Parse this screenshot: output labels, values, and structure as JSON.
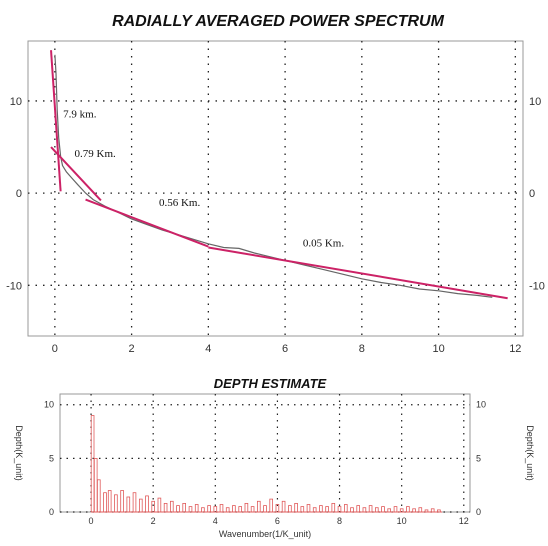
{
  "chart_data": [
    {
      "type": "line",
      "title": "RADIALLY AVERAGED POWER SPECTRUM",
      "xlabel": "",
      "ylabel": "",
      "xlim": [
        -0.7,
        12.2
      ],
      "ylim": [
        -15.5,
        16.5
      ],
      "xticks": [
        0,
        2,
        4,
        6,
        8,
        10,
        12
      ],
      "yticks": [
        -10,
        0,
        10
      ],
      "grid": true,
      "series": [
        {
          "values_x": [
            0.0,
            0.03,
            0.06,
            0.1,
            0.15,
            0.2,
            0.3,
            0.45,
            0.6,
            0.8,
            1.0,
            1.3,
            1.6,
            2.0,
            2.4,
            2.8,
            3.2,
            3.6,
            4.0,
            4.4,
            4.8,
            5.2,
            5.6,
            6.0,
            6.5,
            7.0,
            7.5,
            8.0,
            8.5,
            9.0,
            9.5,
            10.0,
            10.5,
            11.0,
            11.4
          ],
          "values_y": [
            15.0,
            13.0,
            9.0,
            6.0,
            4.0,
            3.0,
            2.3,
            1.6,
            0.9,
            0.0,
            -0.7,
            -1.4,
            -2.0,
            -2.8,
            -3.4,
            -4.0,
            -4.5,
            -5.0,
            -5.5,
            -5.9,
            -6.0,
            -6.5,
            -6.9,
            -7.3,
            -7.8,
            -8.3,
            -8.8,
            -9.3,
            -9.7,
            -10.0,
            -10.4,
            -10.6,
            -10.9,
            -11.1,
            -11.3
          ]
        }
      ],
      "fit_lines": [
        {
          "x": [
            -0.1,
            0.15
          ],
          "y": [
            15.5,
            0.2
          ]
        },
        {
          "x": [
            -0.1,
            1.2
          ],
          "y": [
            5.0,
            -0.8
          ]
        },
        {
          "x": [
            0.8,
            4.0
          ],
          "y": [
            -0.7,
            -5.8
          ]
        },
        {
          "x": [
            4.0,
            11.8
          ],
          "y": [
            -5.9,
            -11.4
          ]
        }
      ],
      "annotations": [
        {
          "text": "7.9 km.",
          "x": 0.65,
          "y": 8.2
        },
        {
          "text": "0.79 Km.",
          "x": 1.05,
          "y": 3.9
        },
        {
          "text": "0.56 Km.",
          "x": 3.25,
          "y": -1.4
        },
        {
          "text": "0.05 Km.",
          "x": 7.0,
          "y": -5.8
        }
      ]
    },
    {
      "type": "bar",
      "title": "DEPTH ESTIMATE",
      "xlabel": "Wavenumber(1/K_unit)",
      "ylabel": "Depth(K_unit)",
      "ylabel_right": "Depth(K_unit)",
      "xlim": [
        -1.0,
        12.2
      ],
      "ylim": [
        0,
        11
      ],
      "xticks": [
        0,
        2,
        4,
        6,
        8,
        10,
        12
      ],
      "yticks": [
        0,
        5,
        10
      ],
      "grid": true,
      "bins": [
        {
          "x": 0.05,
          "v": 9.0
        },
        {
          "x": 0.15,
          "v": 5.0
        },
        {
          "x": 0.25,
          "v": 3.0
        },
        {
          "x": 0.45,
          "v": 1.8
        },
        {
          "x": 0.6,
          "v": 2.0
        },
        {
          "x": 0.8,
          "v": 1.6
        },
        {
          "x": 1.0,
          "v": 2.0
        },
        {
          "x": 1.2,
          "v": 1.4
        },
        {
          "x": 1.4,
          "v": 1.8
        },
        {
          "x": 1.6,
          "v": 1.2
        },
        {
          "x": 1.8,
          "v": 1.5
        },
        {
          "x": 2.0,
          "v": 1.0
        },
        {
          "x": 2.2,
          "v": 1.3
        },
        {
          "x": 2.4,
          "v": 0.8
        },
        {
          "x": 2.6,
          "v": 1.0
        },
        {
          "x": 2.8,
          "v": 0.6
        },
        {
          "x": 3.0,
          "v": 0.8
        },
        {
          "x": 3.2,
          "v": 0.5
        },
        {
          "x": 3.4,
          "v": 0.7
        },
        {
          "x": 3.6,
          "v": 0.4
        },
        {
          "x": 3.8,
          "v": 0.6
        },
        {
          "x": 4.0,
          "v": 0.5
        },
        {
          "x": 4.2,
          "v": 0.7
        },
        {
          "x": 4.4,
          "v": 0.4
        },
        {
          "x": 4.6,
          "v": 0.6
        },
        {
          "x": 4.8,
          "v": 0.5
        },
        {
          "x": 5.0,
          "v": 0.8
        },
        {
          "x": 5.2,
          "v": 0.5
        },
        {
          "x": 5.4,
          "v": 1.0
        },
        {
          "x": 5.6,
          "v": 0.6
        },
        {
          "x": 5.8,
          "v": 1.2
        },
        {
          "x": 6.0,
          "v": 0.7
        },
        {
          "x": 6.2,
          "v": 1.0
        },
        {
          "x": 6.4,
          "v": 0.6
        },
        {
          "x": 6.6,
          "v": 0.8
        },
        {
          "x": 6.8,
          "v": 0.5
        },
        {
          "x": 7.0,
          "v": 0.7
        },
        {
          "x": 7.2,
          "v": 0.4
        },
        {
          "x": 7.4,
          "v": 0.6
        },
        {
          "x": 7.6,
          "v": 0.5
        },
        {
          "x": 7.8,
          "v": 0.8
        },
        {
          "x": 8.0,
          "v": 0.5
        },
        {
          "x": 8.2,
          "v": 0.7
        },
        {
          "x": 8.4,
          "v": 0.4
        },
        {
          "x": 8.6,
          "v": 0.6
        },
        {
          "x": 8.8,
          "v": 0.4
        },
        {
          "x": 9.0,
          "v": 0.6
        },
        {
          "x": 9.2,
          "v": 0.4
        },
        {
          "x": 9.4,
          "v": 0.5
        },
        {
          "x": 9.6,
          "v": 0.3
        },
        {
          "x": 9.8,
          "v": 0.5
        },
        {
          "x": 10.0,
          "v": 0.3
        },
        {
          "x": 10.2,
          "v": 0.5
        },
        {
          "x": 10.4,
          "v": 0.3
        },
        {
          "x": 10.6,
          "v": 0.4
        },
        {
          "x": 10.8,
          "v": 0.2
        },
        {
          "x": 11.0,
          "v": 0.3
        },
        {
          "x": 11.2,
          "v": 0.2
        }
      ]
    }
  ],
  "colors": {
    "data_line": "#666666",
    "fit_line": "#cc2266",
    "bars": "#e05a5a",
    "grid": "#222222",
    "frame": "#999999"
  }
}
